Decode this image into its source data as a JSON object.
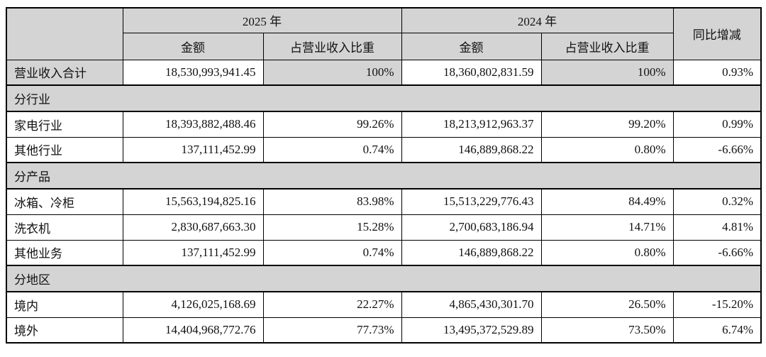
{
  "colors": {
    "header_bg": "#d4d4d4",
    "border": "#000000",
    "page_bg": "#ffffff"
  },
  "table": {
    "col_headers": {
      "corner": "",
      "year_2025": "2025 年",
      "year_2024": "2024 年",
      "yoy": "同比增减",
      "amount_2025": "金额",
      "ratio_2025": "占营业收入比重",
      "amount_2024": "金额",
      "ratio_2024": "占营业收入比重"
    },
    "rows": [
      {
        "type": "data",
        "highlight": true,
        "label": "营业收入合计",
        "a2025": "18,530,993,941.45",
        "r2025": "100%",
        "a2024": "18,360,802,831.59",
        "r2024": "100%",
        "yoy": "0.93%"
      },
      {
        "type": "section",
        "label": "分行业"
      },
      {
        "type": "data",
        "highlight": false,
        "label": "家电行业",
        "a2025": "18,393,882,488.46",
        "r2025": "99.26%",
        "a2024": "18,213,912,963.37",
        "r2024": "99.20%",
        "yoy": "0.99%"
      },
      {
        "type": "data",
        "highlight": false,
        "label": "其他行业",
        "a2025": "137,111,452.99",
        "r2025": "0.74%",
        "a2024": "146,889,868.22",
        "r2024": "0.80%",
        "yoy": "-6.66%"
      },
      {
        "type": "section",
        "label": "分产品"
      },
      {
        "type": "data",
        "highlight": false,
        "label": "冰箱、冷柜",
        "a2025": "15,563,194,825.16",
        "r2025": "83.98%",
        "a2024": "15,513,229,776.43",
        "r2024": "84.49%",
        "yoy": "0.32%"
      },
      {
        "type": "data",
        "highlight": false,
        "label": "洗衣机",
        "a2025": "2,830,687,663.30",
        "r2025": "15.28%",
        "a2024": "2,700,683,186.94",
        "r2024": "14.71%",
        "yoy": "4.81%"
      },
      {
        "type": "data",
        "highlight": false,
        "label": "其他业务",
        "a2025": "137,111,452.99",
        "r2025": "0.74%",
        "a2024": "146,889,868.22",
        "r2024": "0.80%",
        "yoy": "-6.66%"
      },
      {
        "type": "section",
        "label": "分地区"
      },
      {
        "type": "data",
        "highlight": false,
        "label": "境内",
        "a2025": "4,126,025,168.69",
        "r2025": "22.27%",
        "a2024": "4,865,430,301.70",
        "r2024": "26.50%",
        "yoy": "-15.20%"
      },
      {
        "type": "data",
        "highlight": false,
        "label": "境外",
        "a2025": "14,404,968,772.76",
        "r2025": "77.73%",
        "a2024": "13,495,372,529.89",
        "r2024": "73.50%",
        "yoy": "6.74%"
      }
    ]
  }
}
